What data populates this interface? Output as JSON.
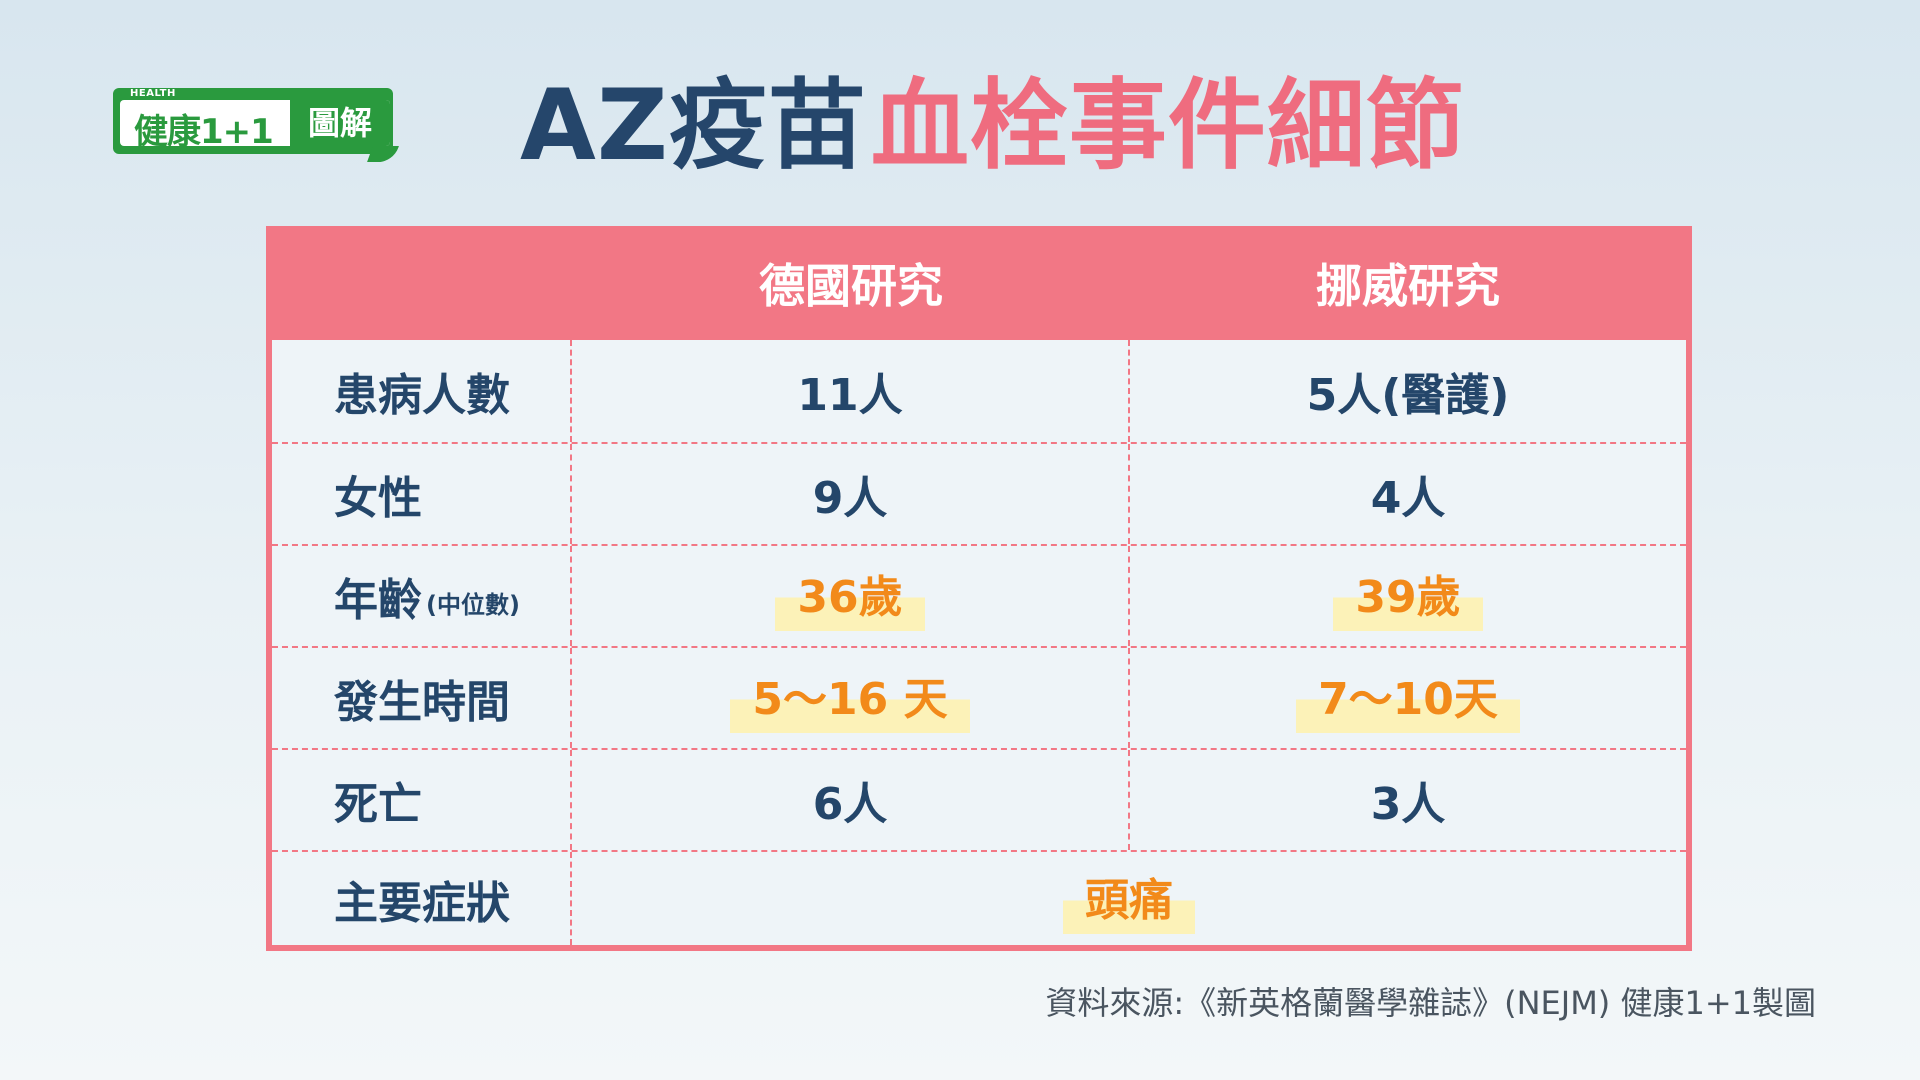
{
  "logo": {
    "small_text": "HEALTH",
    "brand": "健康1+1",
    "tag": "圖解"
  },
  "title": {
    "part1": "AZ疫苗",
    "part2": "血栓事件細節"
  },
  "colors": {
    "title_dark": "#25466b",
    "accent_pink": "#f27785",
    "highlight_orange": "#f28a1a",
    "highlight_bg": "#fcf2b8",
    "logo_green": "#2a9a3e"
  },
  "table": {
    "columns": [
      "",
      "德國研究",
      "挪威研究"
    ],
    "rows": [
      {
        "label": "患病人數",
        "sub": "",
        "germany": "11人",
        "norway": "5人(醫護)",
        "highlight": false
      },
      {
        "label": "女性",
        "sub": "",
        "germany": "9人",
        "norway": "4人",
        "highlight": false
      },
      {
        "label": "年齡",
        "sub": "(中位數)",
        "germany": "36歲",
        "norway": "39歲",
        "highlight": true
      },
      {
        "label": "發生時間",
        "sub": "",
        "germany": "5〜16 天",
        "norway": "7〜10天",
        "highlight": true
      },
      {
        "label": "死亡",
        "sub": "",
        "germany": "6人",
        "norway": "3人",
        "highlight": false
      }
    ],
    "last_row": {
      "label": "主要症狀",
      "value": "頭痛"
    }
  },
  "source": "資料來源:《新英格蘭醫學雜誌》(NEJM)   健康1+1製圖"
}
